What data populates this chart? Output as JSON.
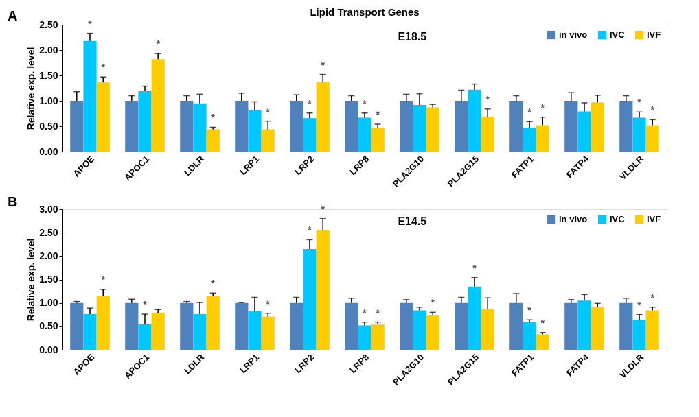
{
  "chart_data": [
    {
      "type": "bar",
      "title": "Lipid Transport Genes",
      "subtitle": "E18.5",
      "annotations": [
        "A"
      ],
      "ylabel": "Relative exp. level",
      "categories": [
        "APOE",
        "APOC1",
        "LDLR",
        "LRP1",
        "LRP2",
        "LRP8",
        "PLA2G10",
        "PLA2G15",
        "FATP1",
        "FATP4",
        "VLDLR"
      ],
      "ylim": [
        0,
        2.5
      ],
      "yticks": [
        {
          "value": 0,
          "label": "0.00"
        },
        {
          "value": 0.5,
          "label": "0.50"
        },
        {
          "value": 1,
          "label": "1.00"
        },
        {
          "value": 1.5,
          "label": "1.50"
        },
        {
          "value": 2,
          "label": "2.00"
        },
        {
          "value": 2.5,
          "label": "2.50"
        }
      ],
      "legend": "top right",
      "grid": false,
      "series": [
        {
          "name": "in vivo",
          "color": "#4f81bd",
          "values": [
            1.0,
            1.0,
            1.0,
            1.0,
            1.0,
            1.0,
            1.0,
            1.0,
            1.0,
            1.0,
            1.0
          ],
          "errors": [
            0.18,
            0.1,
            0.1,
            0.15,
            0.12,
            0.1,
            0.13,
            0.21,
            0.1,
            0.16,
            0.1
          ],
          "value_labels": [
            null,
            null,
            null,
            null,
            null,
            null,
            null,
            null,
            null,
            null,
            null
          ]
        },
        {
          "name": "IVC",
          "color": "#00c8ff",
          "values": [
            2.18,
            1.19,
            0.95,
            0.82,
            0.66,
            0.67,
            0.92,
            1.22,
            0.47,
            0.79,
            0.67
          ],
          "errors": [
            0.15,
            0.1,
            0.18,
            0.16,
            0.1,
            0.09,
            0.22,
            0.11,
            0.12,
            0.17,
            0.11
          ],
          "value_labels": [
            "*",
            null,
            null,
            null,
            "*",
            "*",
            null,
            null,
            "*",
            null,
            "*"
          ]
        },
        {
          "name": "IVF",
          "color": "#ffcc00",
          "values": [
            1.36,
            1.82,
            0.44,
            0.44,
            1.37,
            0.47,
            0.87,
            0.69,
            0.52,
            0.97,
            0.52
          ],
          "errors": [
            0.11,
            0.11,
            0.04,
            0.16,
            0.15,
            0.07,
            0.06,
            0.15,
            0.16,
            0.14,
            0.11
          ],
          "value_labels": [
            "*",
            "*",
            "*",
            "*",
            "*",
            "*",
            null,
            "*",
            "*",
            null,
            "*"
          ]
        }
      ]
    },
    {
      "type": "bar",
      "subtitle": "E14.5",
      "annotations": [
        "B"
      ],
      "ylabel": "Relative exp. level",
      "categories": [
        "APOE",
        "APOC1",
        "LDLR",
        "LRP1",
        "LRP2",
        "LRP8",
        "PLA2G10",
        "PLA2G15",
        "FATP1",
        "FATP4",
        "VLDLR"
      ],
      "ylim": [
        0,
        3
      ],
      "yticks": [
        {
          "value": 0,
          "label": "0.00"
        },
        {
          "value": 0.5,
          "label": "0.50"
        },
        {
          "value": 1,
          "label": "1.00"
        },
        {
          "value": 1.5,
          "label": "1.50"
        },
        {
          "value": 2,
          "label": "2.00"
        },
        {
          "value": 2.5,
          "label": "2.50"
        },
        {
          "value": 3,
          "label": "3.00"
        }
      ],
      "legend": "top right",
      "grid": false,
      "series": [
        {
          "name": "in vivo",
          "color": "#4f81bd",
          "values": [
            1.0,
            1.0,
            1.0,
            1.0,
            1.0,
            1.0,
            1.0,
            1.0,
            1.0,
            1.0,
            1.0
          ],
          "errors": [
            0.03,
            0.08,
            0.03,
            0.01,
            0.12,
            0.1,
            0.07,
            0.12,
            0.2,
            0.07,
            0.1
          ],
          "value_labels": [
            null,
            null,
            null,
            null,
            null,
            null,
            null,
            null,
            null,
            null,
            null
          ]
        },
        {
          "name": "IVC",
          "color": "#00c8ff",
          "values": [
            0.76,
            0.55,
            0.76,
            0.82,
            2.15,
            0.52,
            0.84,
            1.35,
            0.59,
            1.05,
            0.64
          ],
          "errors": [
            0.13,
            0.21,
            0.25,
            0.3,
            0.2,
            0.07,
            0.07,
            0.19,
            0.05,
            0.13,
            0.11
          ],
          "value_labels": [
            null,
            "*",
            null,
            null,
            "*",
            "*",
            null,
            "*",
            "*",
            null,
            "*"
          ]
        },
        {
          "name": "IVF",
          "color": "#ffcc00",
          "values": [
            1.14,
            0.79,
            1.14,
            0.71,
            2.55,
            0.54,
            0.73,
            0.87,
            0.33,
            0.92,
            0.84
          ],
          "errors": [
            0.15,
            0.07,
            0.07,
            0.07,
            0.25,
            0.05,
            0.07,
            0.24,
            0.04,
            0.07,
            0.07
          ],
          "value_labels": [
            "*",
            null,
            "*",
            "*",
            "*",
            "*",
            "*",
            null,
            "*",
            null,
            "*"
          ]
        }
      ]
    }
  ]
}
